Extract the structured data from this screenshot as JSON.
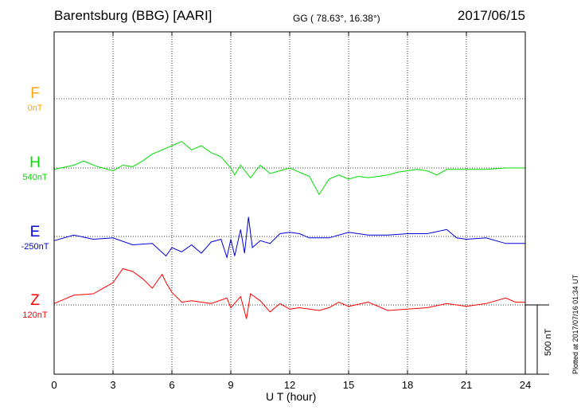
{
  "header": {
    "title": "Barentsburg (BBG)  [AARI]",
    "coords": "GG ( 78.63°,  16.38°)",
    "date": "2017/06/15"
  },
  "side_note": "Plotted at 2017/07/16 01:34 UT",
  "scale_label": "500 nT",
  "chart_data": {
    "type": "line",
    "xlabel": "U T (hour)",
    "xlim": [
      0,
      24
    ],
    "xticks": [
      0,
      3,
      6,
      9,
      12,
      15,
      18,
      21,
      24
    ],
    "tick_labels": [
      "0",
      "3",
      "6",
      "9",
      "12",
      "15",
      "18",
      "21",
      "24"
    ],
    "scale_bar_nT": 500,
    "channels": [
      {
        "label": "F",
        "baseline": "0nT",
        "color": "#ffa500",
        "points": []
      },
      {
        "label": "H",
        "baseline": "540nT",
        "color": "#00dd00",
        "points": [
          [
            0,
            -5
          ],
          [
            1,
            10
          ],
          [
            1.5,
            25
          ],
          [
            2.2,
            5
          ],
          [
            3,
            -10
          ],
          [
            3.5,
            10
          ],
          [
            4,
            5
          ],
          [
            4.5,
            25
          ],
          [
            5,
            50
          ],
          [
            5.5,
            65
          ],
          [
            6,
            80
          ],
          [
            6.5,
            95
          ],
          [
            7,
            65
          ],
          [
            7.5,
            80
          ],
          [
            8,
            55
          ],
          [
            8.5,
            40
          ],
          [
            9,
            0
          ],
          [
            9.2,
            -25
          ],
          [
            9.5,
            10
          ],
          [
            10,
            -35
          ],
          [
            10.5,
            10
          ],
          [
            11,
            -20
          ],
          [
            11.5,
            -10
          ],
          [
            12,
            0
          ],
          [
            12.5,
            -15
          ],
          [
            13,
            -30
          ],
          [
            13.5,
            -95
          ],
          [
            14,
            -40
          ],
          [
            14.5,
            -25
          ],
          [
            15,
            -40
          ],
          [
            15.5,
            -30
          ],
          [
            16,
            -35
          ],
          [
            16.5,
            -30
          ],
          [
            17,
            -25
          ],
          [
            17.5,
            -15
          ],
          [
            18,
            -10
          ],
          [
            18.5,
            -5
          ],
          [
            19,
            -10
          ],
          [
            19.5,
            -25
          ],
          [
            20,
            -5
          ],
          [
            21,
            -5
          ],
          [
            22,
            -5
          ],
          [
            23,
            0
          ],
          [
            24,
            0
          ]
        ]
      },
      {
        "label": "E",
        "baseline": "-250nT",
        "color": "#0000dd",
        "points": [
          [
            0,
            -15
          ],
          [
            1,
            5
          ],
          [
            2,
            -10
          ],
          [
            3,
            -5
          ],
          [
            4,
            -30
          ],
          [
            5,
            -25
          ],
          [
            5.7,
            -70
          ],
          [
            6,
            -40
          ],
          [
            6.5,
            -55
          ],
          [
            7,
            -30
          ],
          [
            7.5,
            -60
          ],
          [
            8,
            -20
          ],
          [
            8.5,
            -10
          ],
          [
            8.8,
            -75
          ],
          [
            9,
            -10
          ],
          [
            9.2,
            -70
          ],
          [
            9.5,
            25
          ],
          [
            9.7,
            -60
          ],
          [
            9.9,
            70
          ],
          [
            10.1,
            -40
          ],
          [
            10.5,
            -15
          ],
          [
            11,
            -25
          ],
          [
            11.5,
            10
          ],
          [
            12,
            15
          ],
          [
            12.5,
            10
          ],
          [
            13,
            -5
          ],
          [
            14,
            -5
          ],
          [
            15,
            15
          ],
          [
            16,
            5
          ],
          [
            17,
            5
          ],
          [
            18,
            10
          ],
          [
            19,
            10
          ],
          [
            20,
            25
          ],
          [
            20.5,
            -5
          ],
          [
            21,
            -10
          ],
          [
            22,
            -5
          ],
          [
            23,
            -25
          ],
          [
            24,
            -25
          ]
        ]
      },
      {
        "label": "Z",
        "baseline": "120nT",
        "color": "#ff0000",
        "points": [
          [
            0,
            5
          ],
          [
            1,
            35
          ],
          [
            2,
            40
          ],
          [
            3,
            80
          ],
          [
            3.5,
            130
          ],
          [
            4,
            120
          ],
          [
            4.5,
            95
          ],
          [
            5,
            60
          ],
          [
            5.5,
            110
          ],
          [
            5.7,
            80
          ],
          [
            6,
            45
          ],
          [
            6.5,
            10
          ],
          [
            7,
            15
          ],
          [
            7.5,
            10
          ],
          [
            8,
            5
          ],
          [
            8.8,
            25
          ],
          [
            9,
            -10
          ],
          [
            9.5,
            30
          ],
          [
            9.8,
            -50
          ],
          [
            10,
            40
          ],
          [
            10.5,
            15
          ],
          [
            11,
            -25
          ],
          [
            11.5,
            5
          ],
          [
            12,
            -15
          ],
          [
            12.5,
            -10
          ],
          [
            13,
            -15
          ],
          [
            13.5,
            -20
          ],
          [
            14,
            -10
          ],
          [
            14.5,
            10
          ],
          [
            15,
            -5
          ],
          [
            16,
            10
          ],
          [
            17,
            -20
          ],
          [
            18,
            -15
          ],
          [
            19,
            -10
          ],
          [
            20,
            5
          ],
          [
            21,
            -5
          ],
          [
            22,
            5
          ],
          [
            23,
            25
          ],
          [
            23.5,
            10
          ],
          [
            24,
            10
          ]
        ]
      }
    ]
  }
}
